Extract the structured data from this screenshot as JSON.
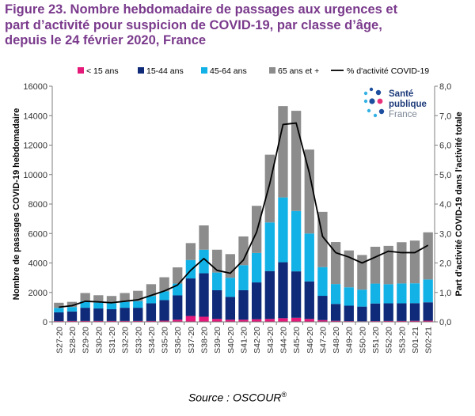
{
  "figure": {
    "title_lines": [
      "Figure 23. Nombre hebdomadaire de passages aux urgences et",
      "part d’activité pour suspicion de COVID-19, par classe d’âge,",
      "depuis le 24 février 2020, France"
    ],
    "source_text": "Source : OSCOUR",
    "source_sup": "®"
  },
  "logo": {
    "line1": "Santé",
    "line2": "publique",
    "line3": "France",
    "dot_colors": [
      "#1d4e9e",
      "#e8307a",
      "#34b2e4"
    ]
  },
  "chart_data": {
    "type": "bar",
    "stacked": true,
    "categories": [
      "S27-20",
      "S28-20",
      "S29-20",
      "S30-20",
      "S31-20",
      "S32-20",
      "S33-20",
      "S34-20",
      "S35-20",
      "S36-20",
      "S37-20",
      "S38-20",
      "S39-20",
      "S40-20",
      "S41-20",
      "S42-20",
      "S43-20",
      "S44-20",
      "S45-20",
      "S46-20",
      "S47-20",
      "S48-20",
      "S49-20",
      "S50-20",
      "S51-20",
      "S52-20",
      "S53-20",
      "S01-21",
      "S02-21"
    ],
    "series": [
      {
        "name": "< 15 ans",
        "color": "#e5197a",
        "values": [
          50,
          60,
          60,
          60,
          60,
          60,
          60,
          60,
          80,
          150,
          400,
          350,
          200,
          150,
          150,
          180,
          200,
          250,
          280,
          200,
          120,
          70,
          50,
          40,
          50,
          60,
          60,
          70,
          80
        ]
      },
      {
        "name": "15-44 ans",
        "color": "#0e2a78",
        "values": [
          600,
          650,
          900,
          850,
          800,
          900,
          900,
          1200,
          1400,
          1650,
          2550,
          2950,
          1950,
          1550,
          2000,
          2500,
          3250,
          3800,
          3150,
          2550,
          1650,
          1150,
          1050,
          1000,
          1200,
          1200,
          1200,
          1200,
          1250
        ]
      },
      {
        "name": "45-64 ans",
        "color": "#12b2e7",
        "values": [
          300,
          300,
          450,
          400,
          400,
          400,
          450,
          500,
          600,
          800,
          1250,
          1600,
          1200,
          1300,
          1700,
          2000,
          3300,
          4400,
          4100,
          3250,
          1950,
          1350,
          1250,
          1150,
          1350,
          1300,
          1350,
          1350,
          1550
        ]
      },
      {
        "name": "65 ans et +",
        "color": "#8c8c8c",
        "values": [
          350,
          350,
          550,
          500,
          500,
          600,
          700,
          800,
          950,
          1100,
          1150,
          1650,
          1550,
          1600,
          1950,
          3200,
          4600,
          6200,
          6800,
          5700,
          3750,
          2850,
          2500,
          2350,
          2500,
          2600,
          2800,
          2900,
          3200
        ]
      }
    ],
    "line_series": {
      "name": "% d'activité COVID-19",
      "color": "#000000",
      "axis": "right",
      "values": [
        0.5,
        0.55,
        0.7,
        0.68,
        0.65,
        0.7,
        0.75,
        0.9,
        1.05,
        1.25,
        1.75,
        2.15,
        1.75,
        1.65,
        2.1,
        3.05,
        4.7,
        6.7,
        6.75,
        5.05,
        2.9,
        2.35,
        2.2,
        2.0,
        2.2,
        2.4,
        2.35,
        2.35,
        2.6
      ]
    },
    "ylabel": "Nombre de passages COVID-19 hebdomadaire",
    "y2label": "Part d'activité COVID-19 dans l'activité totale",
    "ylim": [
      0,
      16000
    ],
    "y2lim": [
      0,
      8
    ],
    "yticks": [
      "0",
      "2000",
      "4000",
      "6000",
      "8000",
      "10000",
      "12000",
      "14000",
      "16000"
    ],
    "y2ticks": [
      "0,0",
      "1,0",
      "2,0",
      "3,0",
      "4,0",
      "5,0",
      "6,0",
      "7,0",
      "8,0"
    ],
    "grid": false,
    "legend_position": "top"
  }
}
